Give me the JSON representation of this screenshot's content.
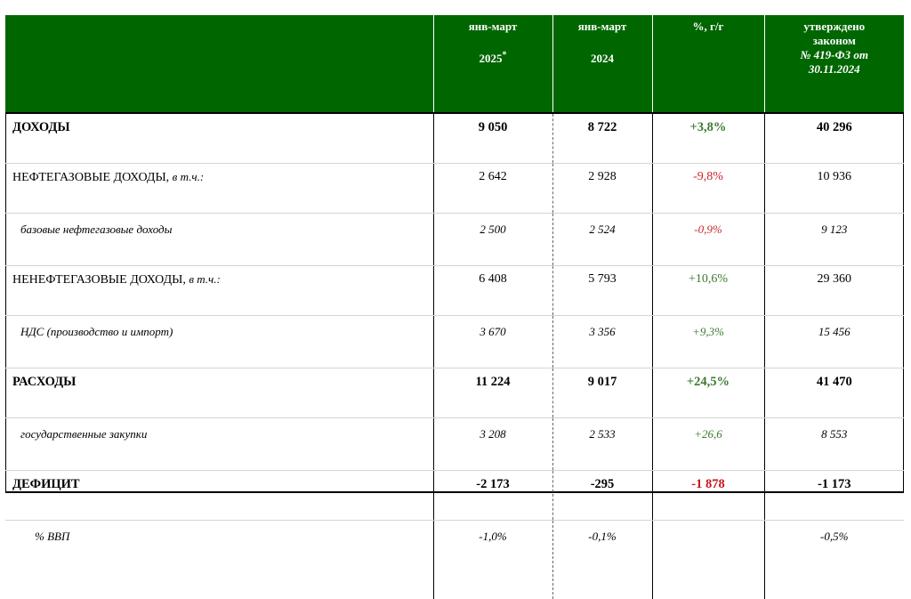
{
  "header": {
    "col1": {
      "line1": "янв-март",
      "line2": "2025",
      "mark": "*"
    },
    "col2": {
      "line1": "янв-март",
      "line2": "2024"
    },
    "col3": {
      "line1": "%, г/г"
    },
    "col4": {
      "line1": "утверждено",
      "line2": "законом",
      "line3": "№ 419-ФЗ от",
      "line4": "30.11.2024"
    }
  },
  "rows": [
    {
      "label": "ДОХОДЫ",
      "note": "",
      "v2025": "9 050",
      "v2024": "8 722",
      "change": "+3,8%",
      "approved": "40 296",
      "change_sign": "positive"
    },
    {
      "label": "НЕФТЕГАЗОВЫЕ ДОХОДЫ,",
      "note": "в т.ч.:",
      "v2025": "2 642",
      "v2024": "2 928",
      "change": "-9,8%",
      "approved": "10 936",
      "change_sign": "negative"
    },
    {
      "label": "базовые нефтегазовые доходы",
      "note": "",
      "v2025": "2 500",
      "v2024": "2 524",
      "change": "-0,9%",
      "approved": "9 123",
      "change_sign": "negative"
    },
    {
      "label": "НЕНЕФТЕГАЗОВЫЕ ДОХОДЫ,",
      "note": "в т.ч.:",
      "v2025": "6 408",
      "v2024": "5 793",
      "change": "+10,6%",
      "approved": "29 360",
      "change_sign": "positive"
    },
    {
      "label": "НДС (производство и импорт)",
      "note": "",
      "v2025": "3 670",
      "v2024": "3 356",
      "change": "+9,3%",
      "approved": "15 456",
      "change_sign": "positive"
    },
    {
      "label": "РАСХОДЫ",
      "note": "",
      "v2025": "11 224",
      "v2024": "9 017",
      "change": "+24,5%",
      "approved": "41 470",
      "change_sign": "positive"
    },
    {
      "label": "государственные закупки",
      "note": "",
      "v2025": "3 208",
      "v2024": "2 533",
      "change": "+26,6",
      "approved": "8 553",
      "change_sign": "positive"
    },
    {
      "label": "ДЕФИЦИТ",
      "note": "",
      "v2025": "-2 173",
      "v2024": "-295",
      "change": "-1 878",
      "approved": "-1 173",
      "change_sign": "negative"
    },
    {
      "label": "% ВВП",
      "note": "",
      "v2025": "-1,0%",
      "v2024": "-0,1%",
      "change": "",
      "approved": "-0,5%",
      "change_sign": "none"
    }
  ],
  "colors": {
    "header_bg": "#006600",
    "positive": "#3c7a2f",
    "negative": "#c8252c"
  }
}
